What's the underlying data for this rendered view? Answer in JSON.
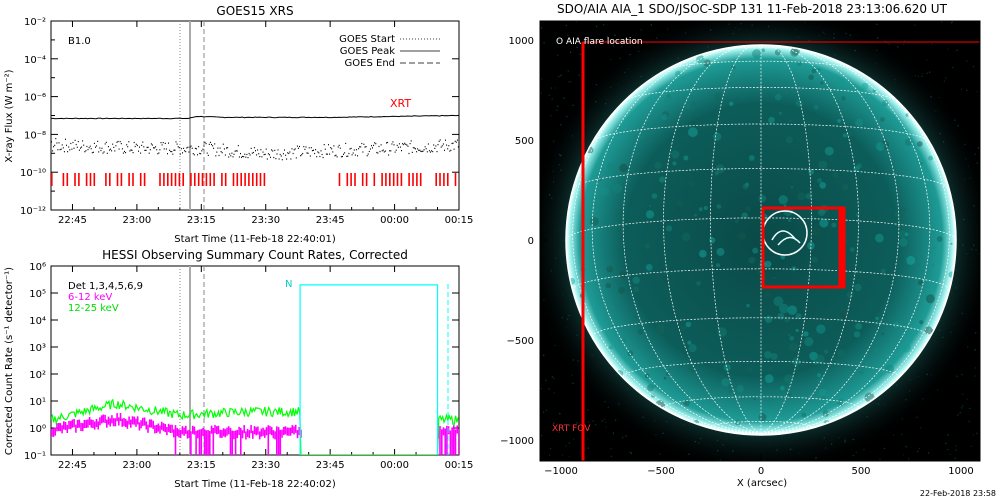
{
  "goes": {
    "title": "GOES15 XRS",
    "ylabel": "X-ray Flux (W m⁻²)",
    "xlabel": "Start Time (11-Feb-18 22:40:01)",
    "class_label": "B1.0",
    "legend": [
      "GOES Start",
      "GOES Peak",
      "GOES End"
    ],
    "xrt_label": "XRT",
    "yticks": [
      "10⁻²",
      "10⁻⁴",
      "10⁻⁶",
      "10⁻⁸",
      "10⁻¹⁰",
      "10⁻¹²"
    ],
    "xticks": [
      "22:45",
      "23:00",
      "23:15",
      "23:30",
      "23:45",
      "00:00",
      "00:15"
    ]
  },
  "hessi": {
    "title": "HESSI Observing Summary Count Rates, Corrected",
    "ylabel": "Corrected Count Rate (s⁻¹ detector⁻¹)",
    "xlabel": "Start Time (11-Feb-18 22:40:02)",
    "legend": [
      "Det 1,3,4,5,6,9",
      "6-12 keV",
      "12-25 keV"
    ],
    "flag_label": "N",
    "yticks": [
      "10⁶",
      "10⁵",
      "10⁴",
      "10³",
      "10²",
      "10¹",
      "10⁰",
      "10⁻¹"
    ],
    "xticks": [
      "22:45",
      "23:00",
      "23:15",
      "23:30",
      "23:45",
      "00:00",
      "00:15"
    ]
  },
  "aia": {
    "title": "SDO/AIA AIA_1 SDO/JSOC-SDP 131 11-Feb-2018 23:13:06.620 UT",
    "flare_legend": "O AIA flare location",
    "fov_label": "XRT FOV",
    "xlabel": "X (arcsec)",
    "xticks": [
      "−1000",
      "−500",
      "0",
      "500",
      "1000"
    ],
    "yticks": [
      "1000",
      "500",
      "0",
      "−500",
      "−1000"
    ]
  },
  "footer_date": "22-Feb-2018 23:58",
  "colors": {
    "xrt": "#ff0000",
    "low_energy": "#ff00ff",
    "high_energy": "#00ff00",
    "night_flag": "#00ffff",
    "sun": "#0e8a86"
  },
  "chart_data": [
    {
      "type": "line",
      "title": "GOES15 XRS",
      "ylabel": "X-ray Flux (W m⁻²)",
      "xlabel": "Start Time (11-Feb-18 22:40:01)",
      "yscale": "log",
      "ylim": [
        1e-12,
        0.01
      ],
      "x_range": [
        "22:40",
        "00:15"
      ],
      "series": [
        {
          "values_time": [
            "22:40",
            "23:00",
            "23:12",
            "23:14",
            "23:20",
            "23:45",
            "00:15"
          ],
          "values": [
            7e-08,
            7e-08,
            7e-08,
            9e-08,
            8e-08,
            8e-08,
            1e-07
          ]
        },
        {
          "values_time": [
            "22:40",
            "23:00",
            "23:15",
            "23:30",
            "23:45",
            "00:00",
            "00:15"
          ],
          "values": [
            3e-09,
            2e-09,
            2e-09,
            1e-09,
            1.5e-09,
            2e-09,
            3e-09
          ]
        }
      ],
      "markers": {
        "goes_start": "23:10",
        "goes_peak": "23:13",
        "goes_end": "23:16"
      },
      "annotations": [
        "B1.0",
        "XRT"
      ]
    },
    {
      "type": "line",
      "title": "HESSI Observing Summary Count Rates, Corrected",
      "ylabel": "Corrected Count Rate (s⁻¹ detector⁻¹)",
      "xlabel": "Start Time (11-Feb-18 22:40:02)",
      "yscale": "log",
      "ylim": [
        0.1,
        1000000.0
      ],
      "x_range": [
        "22:40",
        "00:15"
      ],
      "series": [
        {
          "name": "6-12 keV",
          "values_time": [
            "22:40",
            "22:55",
            "23:10",
            "23:25",
            "23:38",
            "00:10",
            "00:15"
          ],
          "values": [
            1.2,
            3,
            1,
            1,
            1,
            1,
            1
          ]
        },
        {
          "name": "12-25 keV",
          "values_time": [
            "22:40",
            "22:55",
            "23:10",
            "23:25",
            "23:38",
            "00:10",
            "00:15"
          ],
          "values": [
            2,
            8,
            3,
            4,
            4,
            2,
            2
          ]
        }
      ],
      "night_flag": {
        "start": "23:38",
        "end": "00:10",
        "level": 200000.0
      },
      "annotations": [
        "Det 1,3,4,5,6,9",
        "N"
      ]
    },
    {
      "type": "heatmap",
      "title": "SDO/AIA AIA_1 SDO/JSOC-SDP 131 11-Feb-2018 23:13:06.620 UT",
      "xlabel": "X (arcsec)",
      "xlim": [
        -1100,
        1100
      ],
      "ylim": [
        -1100,
        1100
      ],
      "solar_radius_arcsec": 975,
      "flare_location": [
        200,
        0
      ],
      "xrt_fov_left_edge": -900,
      "zoom_box": {
        "x": [
          0,
          400
        ],
        "y": [
          -250,
          150
        ]
      }
    }
  ]
}
